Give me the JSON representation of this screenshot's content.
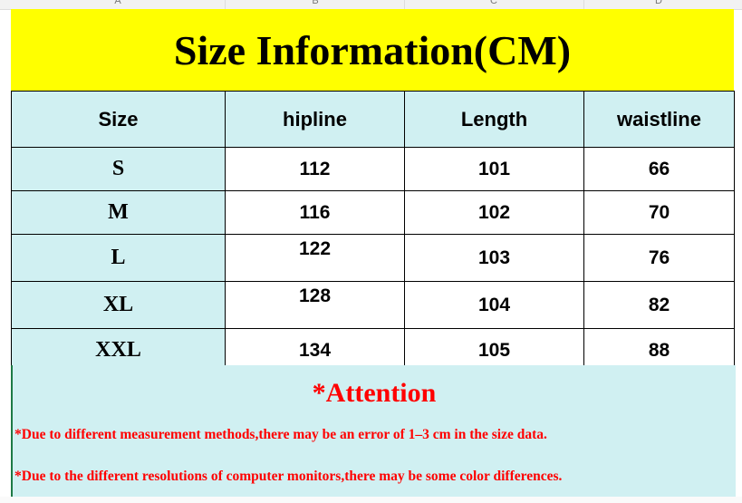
{
  "columns": [
    "A",
    "B",
    "C",
    "D"
  ],
  "title": "Size Information(CM)",
  "table": {
    "headers": [
      "Size",
      "hipline",
      "Length",
      "waistline"
    ],
    "rows": [
      [
        "S",
        "112",
        "101",
        "66"
      ],
      [
        "M",
        "116",
        "102",
        "70"
      ],
      [
        "L",
        "122",
        "103",
        "76"
      ],
      [
        "XL",
        "128",
        "104",
        "82"
      ],
      [
        "XXL",
        "134",
        "105",
        "88"
      ]
    ]
  },
  "attention": {
    "heading": "*Attention",
    "notes": [
      "*Due to different measurement methods,there may be an error of 1–3 cm in the size data.",
      "*Due to the different resolutions of computer monitors,there may be some color differences."
    ]
  },
  "colors": {
    "title_bg": "#ffff00",
    "cell_bg": "#d0f0f2",
    "attention_text": "#ff0000"
  }
}
